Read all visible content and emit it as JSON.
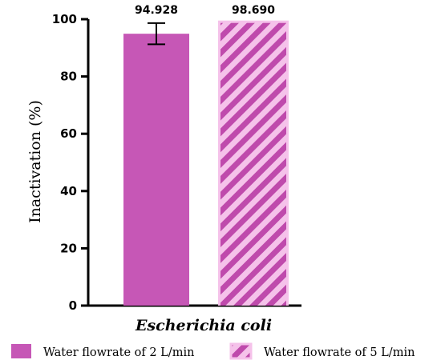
{
  "chart_data": {
    "type": "bar",
    "categories": [
      "Escherichia coli"
    ],
    "series": [
      {
        "name": "Water flowrate of 2 L/min",
        "values": [
          94.928
        ],
        "error": [
          3.7
        ],
        "label": "94.928",
        "color": "#c657b6",
        "pattern": "solid"
      },
      {
        "name": "Water flowrate of 5 L/min",
        "values": [
          98.69
        ],
        "error": null,
        "label": "98.690",
        "color": "#bf4aac",
        "background": "#f5c2ea",
        "pattern": "diagonal-stripes"
      }
    ],
    "ylabel": "Inactivation (%)",
    "ylim": [
      0,
      100
    ],
    "yticks": [
      0,
      20,
      40,
      60,
      80,
      100
    ],
    "grid": false,
    "legend_placement": "bottom"
  }
}
